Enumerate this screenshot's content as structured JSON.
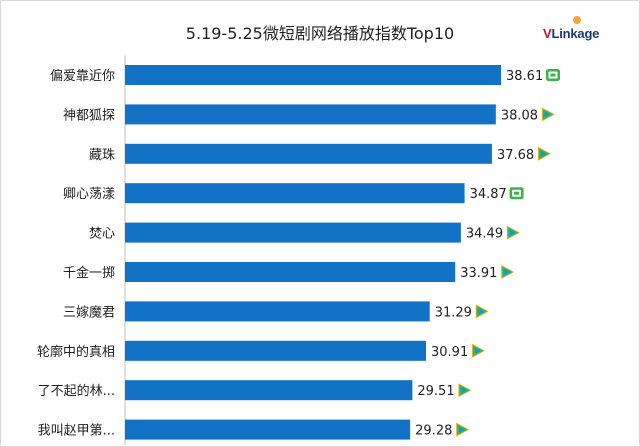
{
  "header": {
    "title": "5.19-5.25微短剧网络播放指数Top10",
    "logo_text_v": "V",
    "logo_text_rest": "Linkage"
  },
  "colors": {
    "bar": "#1272c6",
    "platform_iqiyi": "#3bb34a",
    "platform_tencent_green": "#23c05a",
    "platform_tencent_blue": "#1d8ff0",
    "platform_tencent_orange": "#f7a823"
  },
  "chart_data": {
    "type": "bar",
    "orientation": "horizontal",
    "title": "5.19-5.25微短剧网络播放指数Top10",
    "categories": [
      "偏爱靠近你",
      "神都狐探",
      "藏珠",
      "卿心荡漾",
      "焚心",
      "千金一掷",
      "三嫁魔君",
      "轮廓中的真相",
      "了不起的林...",
      "我叫赵甲第..."
    ],
    "values": [
      38.61,
      38.08,
      37.68,
      34.87,
      34.49,
      33.91,
      31.29,
      30.91,
      29.51,
      29.28
    ],
    "value_labels": [
      "38.61",
      "38.08",
      "37.68",
      "34.87",
      "34.49",
      "33.91",
      "31.29",
      "30.91",
      "29.51",
      "29.28"
    ],
    "platform_icons": [
      "iqiyi-icon",
      "tencent-video-icon",
      "tencent-video-icon",
      "iqiyi-icon",
      "tencent-video-icon",
      "tencent-video-icon",
      "tencent-video-icon",
      "tencent-video-icon",
      "tencent-video-icon",
      "tencent-video-icon"
    ],
    "xlim": [
      0,
      38.61
    ],
    "grid": false,
    "legend": "none"
  }
}
